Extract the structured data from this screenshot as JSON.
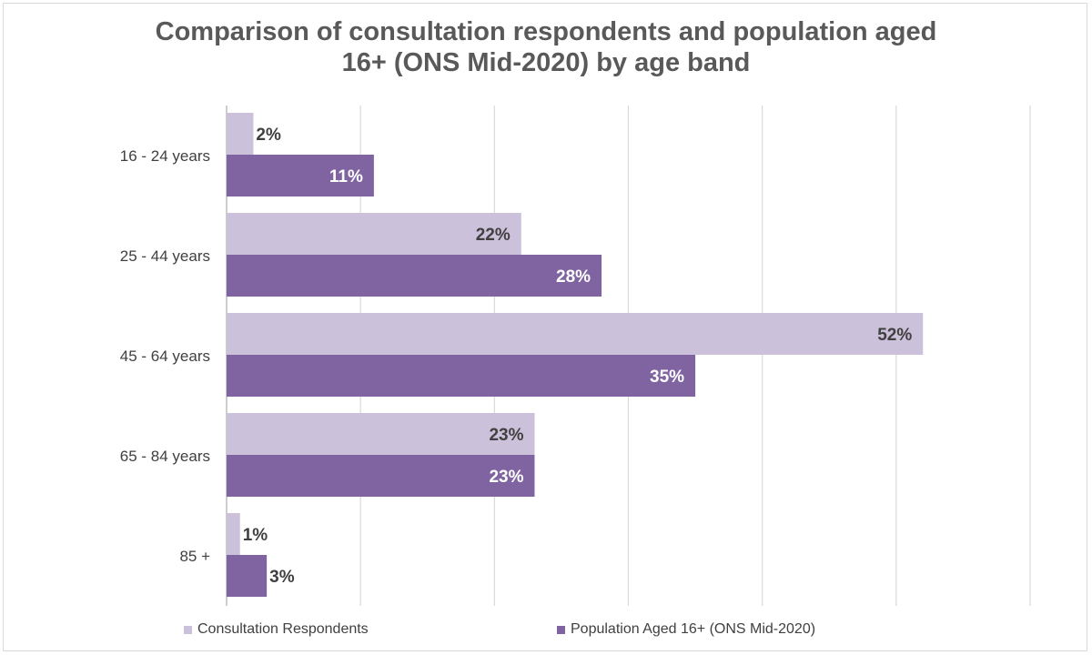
{
  "chart_data": {
    "type": "bar",
    "orientation": "horizontal",
    "title": "Comparison of consultation respondents and population aged 16+ (ONS Mid-2020) by age band",
    "title_lines": [
      "Comparison of consultation respondents and  population aged",
      "16+ (ONS Mid-2020) by age band"
    ],
    "categories": [
      "16 - 24 years",
      "25 - 44 years",
      "45 - 64 years",
      "65 - 84 years",
      "85 +"
    ],
    "series": [
      {
        "name": "Consultation Respondents",
        "color": "#ccc1da",
        "label_color": "#404040",
        "values": [
          2,
          22,
          52,
          23,
          1
        ]
      },
      {
        "name": "Population Aged 16+ (ONS Mid-2020)",
        "color": "#8064a2",
        "label_color": "#ffffff",
        "values": [
          11,
          28,
          35,
          23,
          3
        ]
      }
    ],
    "value_suffix": "%",
    "xlim": [
      0,
      60
    ],
    "grid": true,
    "legend_position": "bottom"
  }
}
